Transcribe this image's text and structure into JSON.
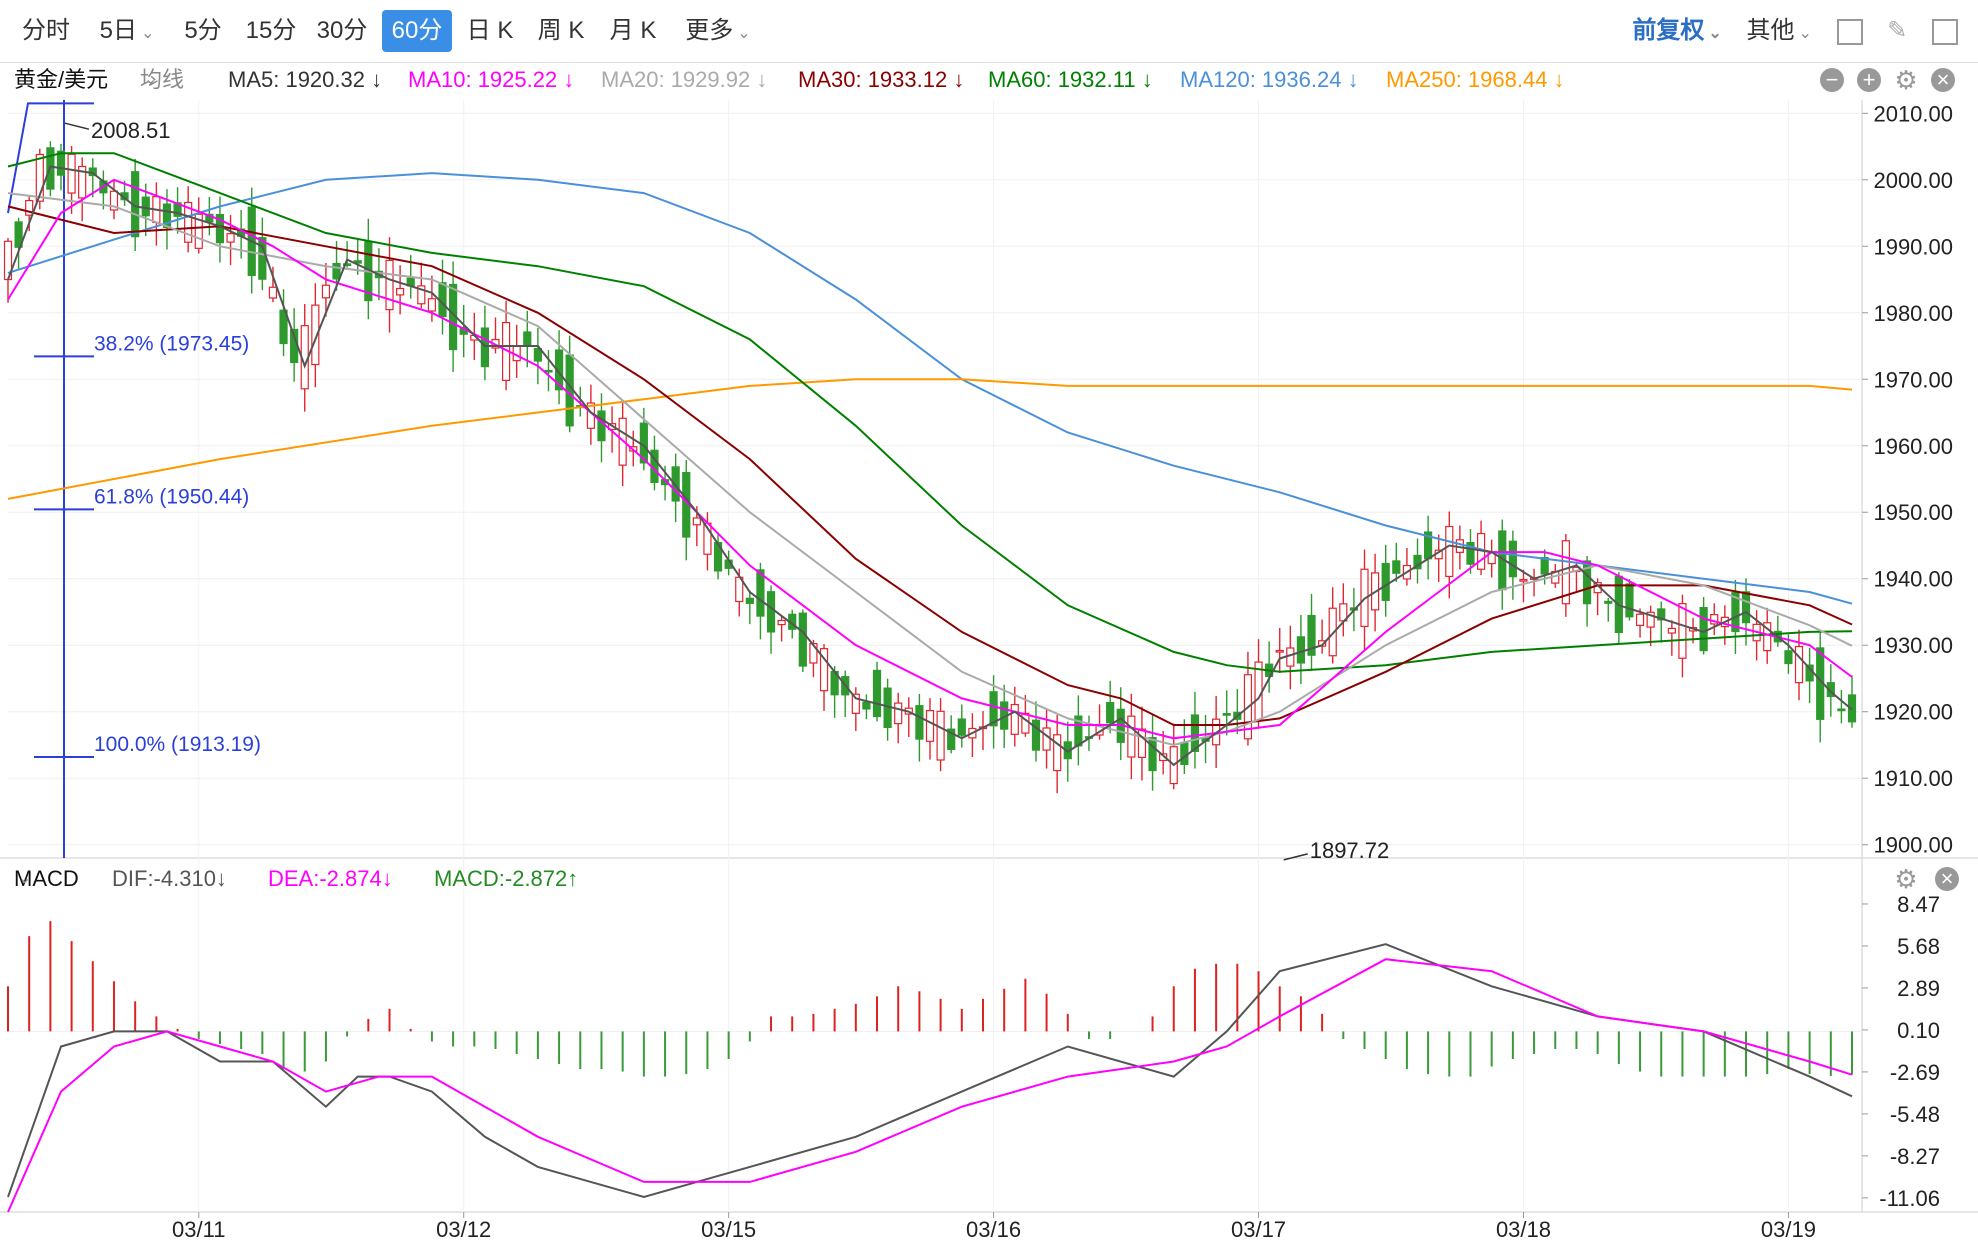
{
  "toolbar": {
    "tabs": [
      {
        "label": "分时",
        "chev": false,
        "active": false
      },
      {
        "label": "5日",
        "chev": true,
        "active": false
      },
      {
        "label": "5分",
        "chev": false,
        "active": false
      },
      {
        "label": "15分",
        "chev": false,
        "active": false
      },
      {
        "label": "30分",
        "chev": false,
        "active": false
      },
      {
        "label": "60分",
        "chev": false,
        "active": true
      },
      {
        "label": "日 K",
        "chev": false,
        "active": false
      },
      {
        "label": "周 K",
        "chev": false,
        "active": false
      },
      {
        "label": "月 K",
        "chev": false,
        "active": false
      },
      {
        "label": "更多",
        "chev": true,
        "active": false
      }
    ],
    "adjust_label": "前复权",
    "other_label": "其他",
    "icons": [
      "grid-icon",
      "pencil-icon",
      "window-icon"
    ]
  },
  "ma_bar": {
    "symbol": "黄金/美元",
    "ma_type": "均线",
    "items": [
      {
        "label": "MA5: 1920.32 ↓",
        "color": "#333333"
      },
      {
        "label": "MA10: 1925.22 ↓",
        "color": "#ff00ff"
      },
      {
        "label": "MA20: 1929.92 ↓",
        "color": "#aaaaaa"
      },
      {
        "label": "MA30: 1933.12 ↓",
        "color": "#8b0000"
      },
      {
        "label": "MA60: 1932.11 ↓",
        "color": "#008000"
      },
      {
        "label": "MA120: 1936.24 ↓",
        "color": "#4a90d9"
      },
      {
        "label": "MA250: 1968.44 ↓",
        "color": "#ff9900"
      }
    ]
  },
  "macd_bar": {
    "name": "MACD",
    "dif": "DIF:-4.310↓",
    "dea": "DEA:-2.874↓",
    "macd": "MACD:-2.872↑"
  },
  "chart_data": {
    "type": "candlestick",
    "instrument": "黄金/美元",
    "interval": "60分",
    "x_labels": [
      "03/11",
      "03/12",
      "03/15",
      "03/16",
      "03/17",
      "03/18",
      "03/19"
    ],
    "y_ticks": [
      "2010.00",
      "2000.00",
      "1990.00",
      "1980.00",
      "1970.00",
      "1960.00",
      "1950.00",
      "1940.00",
      "1930.00",
      "1920.00",
      "1910.00",
      "1900.00"
    ],
    "ylim": [
      1898,
      2012
    ],
    "high_marker": "2008.51",
    "low_marker": "1897.72",
    "fib_levels": [
      {
        "label": "38.2% (1973.45)",
        "value": 1973.45
      },
      {
        "label": "61.8% (1950.44)",
        "value": 1950.44
      },
      {
        "label": "100.0% (1913.19)",
        "value": 1913.19
      }
    ],
    "ma_series": [
      {
        "name": "MA120",
        "color": "#4a90d9",
        "x": [
          0,
          10,
          20,
          30,
          40,
          50,
          60,
          70,
          80,
          90,
          100,
          110,
          120,
          130,
          140,
          150,
          160,
          170,
          174
        ],
        "values": [
          1986,
          1991,
          1996,
          2000,
          2001,
          2000,
          1998,
          1992,
          1982,
          1970,
          1962,
          1957,
          1953,
          1948,
          1944,
          1942,
          1940,
          1938,
          1936.24
        ]
      },
      {
        "name": "MA250",
        "color": "#ff9900",
        "x": [
          0,
          20,
          40,
          60,
          70,
          80,
          90,
          100,
          110,
          120,
          130,
          140,
          150,
          160,
          170,
          174
        ],
        "values": [
          1952,
          1958,
          1963,
          1967,
          1969,
          1970,
          1970,
          1969,
          1969,
          1969,
          1969,
          1969,
          1969,
          1969,
          1969,
          1968.44
        ]
      },
      {
        "name": "MA60",
        "color": "#008000",
        "x": [
          0,
          5,
          10,
          20,
          30,
          40,
          50,
          60,
          70,
          80,
          90,
          100,
          110,
          115,
          120,
          130,
          140,
          150,
          160,
          170,
          174
        ],
        "values": [
          2002,
          2004,
          2004,
          1998,
          1992,
          1989,
          1987,
          1984,
          1976,
          1963,
          1948,
          1936,
          1929,
          1927,
          1926,
          1927,
          1929,
          1930,
          1931,
          1932,
          1932.11
        ]
      },
      {
        "name": "MA30",
        "color": "#8b0000",
        "x": [
          0,
          10,
          20,
          30,
          40,
          50,
          60,
          70,
          80,
          90,
          100,
          105,
          110,
          115,
          120,
          130,
          140,
          150,
          160,
          170,
          174
        ],
        "values": [
          1996,
          1992,
          1993,
          1990,
          1987,
          1980,
          1970,
          1958,
          1943,
          1932,
          1924,
          1922,
          1918,
          1918,
          1919,
          1926,
          1934,
          1939,
          1939,
          1936,
          1933.12
        ]
      },
      {
        "name": "MA20",
        "color": "#aaaaaa",
        "x": [
          0,
          10,
          20,
          30,
          40,
          50,
          60,
          70,
          80,
          90,
          100,
          105,
          110,
          115,
          120,
          130,
          140,
          150,
          160,
          170,
          174
        ],
        "values": [
          1998,
          1996,
          1990,
          1987,
          1985,
          1978,
          1964,
          1950,
          1938,
          1926,
          1919,
          1917,
          1915,
          1917,
          1920,
          1930,
          1938,
          1942,
          1939,
          1933,
          1929.92
        ]
      },
      {
        "name": "MA10",
        "color": "#ff00ff",
        "x": [
          0,
          5,
          10,
          20,
          25,
          30,
          40,
          50,
          60,
          70,
          80,
          90,
          100,
          105,
          110,
          115,
          120,
          130,
          135,
          140,
          145,
          150,
          160,
          170,
          174
        ],
        "values": [
          1982,
          1995,
          2000,
          1994,
          1990,
          1985,
          1980,
          1972,
          1958,
          1942,
          1930,
          1922,
          1918,
          1918,
          1916,
          1917,
          1918,
          1932,
          1938,
          1944,
          1944,
          1942,
          1934,
          1930,
          1925.22
        ]
      },
      {
        "name": "MA5",
        "color": "#555555",
        "x": [
          0,
          4,
          8,
          12,
          16,
          20,
          24,
          28,
          32,
          36,
          40,
          45,
          50,
          55,
          60,
          65,
          70,
          75,
          80,
          85,
          90,
          95,
          100,
          105,
          110,
          115,
          118,
          120,
          124,
          128,
          132,
          136,
          140,
          144,
          148,
          152,
          156,
          160,
          164,
          168,
          172,
          174
        ],
        "values": [
          1985,
          2002,
          2001,
          1996,
          1995,
          1993,
          1990,
          1972,
          1988,
          1985,
          1983,
          1975,
          1975,
          1965,
          1960,
          1950,
          1938,
          1932,
          1922,
          1920,
          1916,
          1920,
          1914,
          1919,
          1912,
          1918,
          1922,
          1928,
          1930,
          1937,
          1941,
          1945,
          1944,
          1940,
          1942,
          1936,
          1934,
          1932,
          1935,
          1930,
          1923,
          1920.32
        ]
      }
    ],
    "macd": {
      "ylim": [
        -12,
        9
      ],
      "y_ticks": [
        "8.47",
        "5.68",
        "2.89",
        "0.10",
        "-2.69",
        "-5.48",
        "-8.27",
        "-11.06"
      ],
      "dif": {
        "x": [
          0,
          5,
          10,
          15,
          20,
          25,
          30,
          33,
          36,
          40,
          45,
          50,
          60,
          70,
          80,
          90,
          100,
          110,
          115,
          120,
          130,
          140,
          150,
          160,
          170,
          174
        ],
        "values": [
          -11,
          -1,
          0,
          0,
          -2,
          -2,
          -5,
          -3,
          -3,
          -4,
          -7,
          -9,
          -11,
          -9,
          -7,
          -4,
          -1,
          -3,
          0,
          4,
          5.8,
          3,
          1,
          0,
          -3,
          -4.31
        ]
      },
      "dea": {
        "x": [
          0,
          5,
          10,
          15,
          20,
          25,
          30,
          35,
          40,
          45,
          50,
          60,
          70,
          80,
          90,
          100,
          110,
          115,
          120,
          130,
          140,
          150,
          160,
          170,
          174
        ],
        "values": [
          -12,
          -4,
          -1,
          0,
          -1,
          -2,
          -4,
          -3,
          -3,
          -5,
          -7,
          -10,
          -10,
          -8,
          -5,
          -3,
          -2,
          -1,
          1,
          4.8,
          4,
          1,
          0,
          -2,
          -2.874
        ]
      },
      "hist": {
        "x": [
          0,
          3,
          6,
          9,
          12,
          15,
          18,
          21,
          24,
          27,
          30,
          33,
          36,
          39,
          42,
          45,
          48,
          51,
          54,
          57,
          60,
          63,
          66,
          69,
          72,
          75,
          78,
          81,
          84,
          87,
          90,
          93,
          96,
          99,
          102,
          105,
          108,
          111,
          114,
          117,
          120,
          123,
          126,
          129,
          132,
          135,
          138,
          141,
          144,
          147,
          150,
          153,
          156,
          159,
          162,
          165,
          168,
          171,
          174
        ],
        "values": [
          3,
          8,
          6,
          4,
          2,
          0.5,
          -0.5,
          -1,
          -1.5,
          -3,
          -2,
          0.5,
          1.5,
          -0.5,
          -1,
          -1,
          -1.5,
          -2,
          -2.5,
          -2.5,
          -3,
          -3,
          -2.5,
          -1.5,
          1,
          1,
          1.5,
          2,
          3,
          2.5,
          1.5,
          2.5,
          3.5,
          2,
          -0.5,
          -0.5,
          1,
          4,
          4.5,
          4.5,
          3,
          2,
          -0.5,
          -1.5,
          -2.5,
          -3,
          -3,
          -2,
          -1.5,
          -1,
          -1.5,
          -2.5,
          -3,
          -3,
          -3,
          -3,
          -2.5,
          -3,
          -2.872
        ]
      }
    }
  }
}
